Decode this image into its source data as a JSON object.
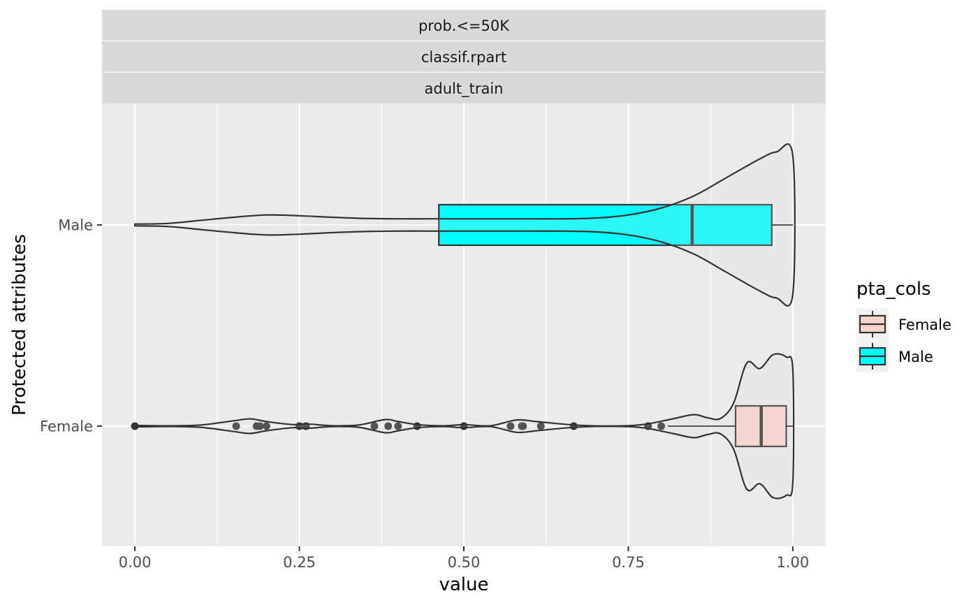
{
  "chart_data": {
    "type": "violin+boxplot",
    "facet_strips": [
      "prob.<=50K",
      "classif.rpart",
      "adult_train"
    ],
    "xlabel": "value",
    "ylabel": "Protected attributes",
    "xlim": [
      -0.05,
      1.05
    ],
    "x_ticks": [
      0.0,
      0.25,
      0.5,
      0.75,
      1.0
    ],
    "x_tick_labels": [
      "0.00",
      "0.25",
      "0.50",
      "0.75",
      "1.00"
    ],
    "categories": [
      "Male",
      "Female"
    ],
    "grid": true,
    "legend": {
      "title": "pta_cols",
      "position": "right",
      "entries": [
        {
          "label": "Female",
          "color": "#f8d5cc"
        },
        {
          "label": "Male",
          "color": "#00ffff"
        }
      ]
    },
    "series": [
      {
        "group": "Male",
        "fill": "#00ffff",
        "box": {
          "q1": 0.462,
          "median": 0.847,
          "q3": 0.968,
          "whisker_low": 0.462,
          "whisker_high": 1.0
        },
        "violin_profile": [
          [
            0.0,
            0.012
          ],
          [
            0.05,
            0.02
          ],
          [
            0.1,
            0.06
          ],
          [
            0.15,
            0.1
          ],
          [
            0.2,
            0.13
          ],
          [
            0.25,
            0.12
          ],
          [
            0.3,
            0.1
          ],
          [
            0.35,
            0.085
          ],
          [
            0.4,
            0.08
          ],
          [
            0.45,
            0.08
          ],
          [
            0.5,
            0.08
          ],
          [
            0.55,
            0.08
          ],
          [
            0.6,
            0.08
          ],
          [
            0.65,
            0.08
          ],
          [
            0.7,
            0.09
          ],
          [
            0.75,
            0.13
          ],
          [
            0.8,
            0.22
          ],
          [
            0.85,
            0.38
          ],
          [
            0.9,
            0.62
          ],
          [
            0.95,
            0.86
          ],
          [
            0.975,
            0.95
          ],
          [
            1.0,
            0.9
          ]
        ],
        "outliers": []
      },
      {
        "group": "Female",
        "fill": "#f8d5cc",
        "box": {
          "q1": 0.913,
          "median": 0.952,
          "q3": 0.99,
          "whisker_low": 0.81,
          "whisker_high": 1.0
        },
        "violin_profile": [
          [
            0.0,
            0.01
          ],
          [
            0.05,
            0.005
          ],
          [
            0.1,
            0.015
          ],
          [
            0.15,
            0.07
          ],
          [
            0.175,
            0.095
          ],
          [
            0.2,
            0.06
          ],
          [
            0.24,
            0.02
          ],
          [
            0.26,
            0.03
          ],
          [
            0.3,
            0.006
          ],
          [
            0.34,
            0.015
          ],
          [
            0.38,
            0.085
          ],
          [
            0.4,
            0.06
          ],
          [
            0.43,
            0.02
          ],
          [
            0.47,
            0.005
          ],
          [
            0.5,
            0.02
          ],
          [
            0.54,
            0.005
          ],
          [
            0.58,
            0.08
          ],
          [
            0.61,
            0.06
          ],
          [
            0.66,
            0.02
          ],
          [
            0.7,
            0.004
          ],
          [
            0.75,
            0.006
          ],
          [
            0.78,
            0.03
          ],
          [
            0.82,
            0.1
          ],
          [
            0.85,
            0.15
          ],
          [
            0.87,
            0.11
          ],
          [
            0.89,
            0.1
          ],
          [
            0.91,
            0.3
          ],
          [
            0.93,
            0.82
          ],
          [
            0.95,
            0.75
          ],
          [
            0.97,
            0.93
          ],
          [
            0.99,
            0.9
          ],
          [
            1.0,
            0.73
          ]
        ],
        "outliers": [
          0.0,
          0.154,
          0.185,
          0.19,
          0.2,
          0.25,
          0.26,
          0.364,
          0.385,
          0.4,
          0.429,
          0.5,
          0.571,
          0.588,
          0.59,
          0.617,
          0.667,
          0.78,
          0.8
        ]
      }
    ]
  }
}
